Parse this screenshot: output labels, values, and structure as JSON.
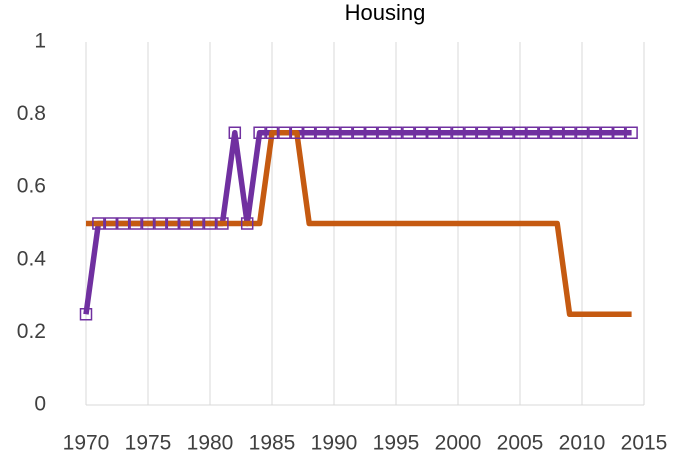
{
  "chart_data": {
    "type": "line",
    "title": "Housing",
    "x": [
      1970,
      1971,
      1972,
      1973,
      1974,
      1975,
      1976,
      1977,
      1978,
      1979,
      1980,
      1981,
      1982,
      1983,
      1984,
      1985,
      1986,
      1987,
      1988,
      1989,
      1990,
      1991,
      1992,
      1993,
      1994,
      1995,
      1996,
      1997,
      1998,
      1999,
      2000,
      2001,
      2002,
      2003,
      2004,
      2005,
      2006,
      2007,
      2008,
      2009,
      2010,
      2011,
      2012,
      2013,
      2014
    ],
    "series": [
      {
        "color": "#7030a0",
        "marker": "square",
        "values": [
          0.25,
          0.5,
          0.5,
          0.5,
          0.5,
          0.5,
          0.5,
          0.5,
          0.5,
          0.5,
          0.5,
          0.5,
          0.75,
          0.5,
          0.75,
          0.75,
          0.75,
          0.75,
          0.75,
          0.75,
          0.75,
          0.75,
          0.75,
          0.75,
          0.75,
          0.75,
          0.75,
          0.75,
          0.75,
          0.75,
          0.75,
          0.75,
          0.75,
          0.75,
          0.75,
          0.75,
          0.75,
          0.75,
          0.75,
          0.75,
          0.75,
          0.75,
          0.75,
          0.75,
          0.75
        ]
      },
      {
        "color": "#c55a11",
        "values": [
          0.5,
          0.5,
          0.5,
          0.5,
          0.5,
          0.5,
          0.5,
          0.5,
          0.5,
          0.5,
          0.5,
          0.5,
          0.5,
          0.5,
          0.5,
          0.75,
          0.75,
          0.75,
          0.5,
          0.5,
          0.5,
          0.5,
          0.5,
          0.5,
          0.5,
          0.5,
          0.5,
          0.5,
          0.5,
          0.5,
          0.5,
          0.5,
          0.5,
          0.5,
          0.5,
          0.5,
          0.5,
          0.5,
          0.5,
          0.25,
          0.25,
          0.25,
          0.25,
          0.25,
          0.25
        ]
      }
    ],
    "xlim": [
      1970,
      2015
    ],
    "xticks": [
      1970,
      1975,
      1980,
      1985,
      1990,
      1995,
      2000,
      2005,
      2010,
      2015
    ],
    "ylim": [
      0,
      1
    ],
    "yticks": [
      0,
      0.2,
      0.4,
      0.6,
      0.8,
      1
    ],
    "grid": "x"
  }
}
